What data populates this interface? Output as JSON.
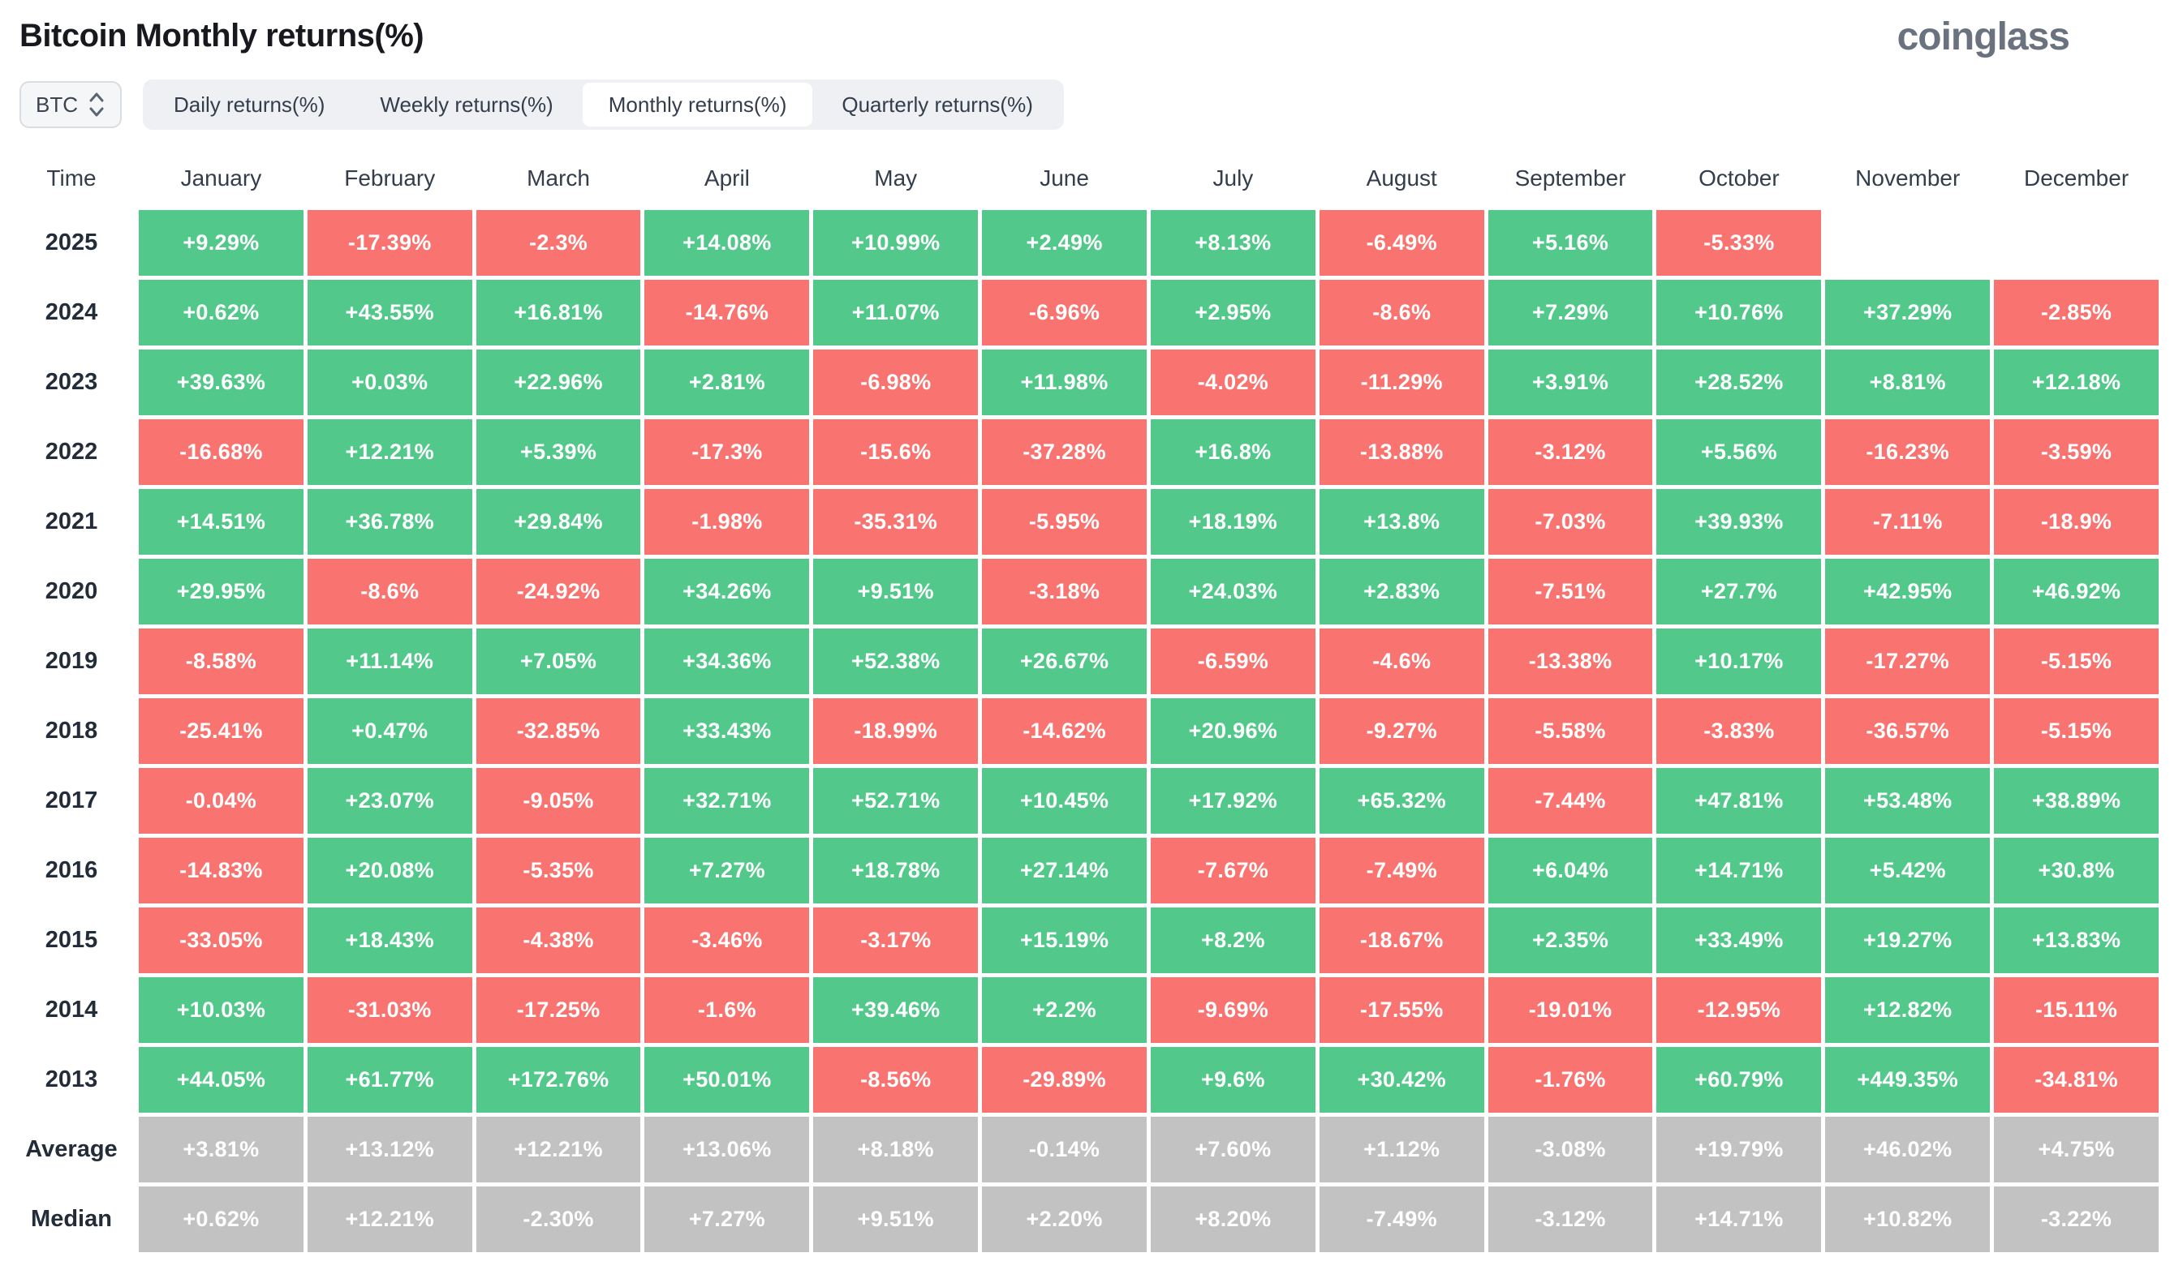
{
  "header": {
    "title": "Bitcoin Monthly returns(%)",
    "logo": "coinglass"
  },
  "controls": {
    "coin_selector": {
      "value": "BTC",
      "icon": "updown-chevron"
    },
    "tabs": [
      {
        "label": "Daily returns(%)",
        "active": false
      },
      {
        "label": "Weekly returns(%)",
        "active": false
      },
      {
        "label": "Monthly returns(%)",
        "active": true
      },
      {
        "label": "Quarterly returns(%)",
        "active": false
      }
    ]
  },
  "chart_data": {
    "type": "heatmap",
    "title": "Bitcoin Monthly returns(%)",
    "columns": [
      "Time",
      "January",
      "February",
      "March",
      "April",
      "May",
      "June",
      "July",
      "August",
      "September",
      "October",
      "November",
      "December"
    ],
    "colors": {
      "positive": "#52c98b",
      "negative": "#f97470",
      "neutral": "#c2c2c2"
    },
    "rows": [
      {
        "label": "2025",
        "type": "year",
        "values": [
          "+9.29%",
          "-17.39%",
          "-2.3%",
          "+14.08%",
          "+10.99%",
          "+2.49%",
          "+8.13%",
          "-6.49%",
          "+5.16%",
          "-5.33%",
          "",
          ""
        ]
      },
      {
        "label": "2024",
        "type": "year",
        "values": [
          "+0.62%",
          "+43.55%",
          "+16.81%",
          "-14.76%",
          "+11.07%",
          "-6.96%",
          "+2.95%",
          "-8.6%",
          "+7.29%",
          "+10.76%",
          "+37.29%",
          "-2.85%"
        ]
      },
      {
        "label": "2023",
        "type": "year",
        "values": [
          "+39.63%",
          "+0.03%",
          "+22.96%",
          "+2.81%",
          "-6.98%",
          "+11.98%",
          "-4.02%",
          "-11.29%",
          "+3.91%",
          "+28.52%",
          "+8.81%",
          "+12.18%"
        ]
      },
      {
        "label": "2022",
        "type": "year",
        "values": [
          "-16.68%",
          "+12.21%",
          "+5.39%",
          "-17.3%",
          "-15.6%",
          "-37.28%",
          "+16.8%",
          "-13.88%",
          "-3.12%",
          "+5.56%",
          "-16.23%",
          "-3.59%"
        ]
      },
      {
        "label": "2021",
        "type": "year",
        "values": [
          "+14.51%",
          "+36.78%",
          "+29.84%",
          "-1.98%",
          "-35.31%",
          "-5.95%",
          "+18.19%",
          "+13.8%",
          "-7.03%",
          "+39.93%",
          "-7.11%",
          "-18.9%"
        ]
      },
      {
        "label": "2020",
        "type": "year",
        "values": [
          "+29.95%",
          "-8.6%",
          "-24.92%",
          "+34.26%",
          "+9.51%",
          "-3.18%",
          "+24.03%",
          "+2.83%",
          "-7.51%",
          "+27.7%",
          "+42.95%",
          "+46.92%"
        ]
      },
      {
        "label": "2019",
        "type": "year",
        "values": [
          "-8.58%",
          "+11.14%",
          "+7.05%",
          "+34.36%",
          "+52.38%",
          "+26.67%",
          "-6.59%",
          "-4.6%",
          "-13.38%",
          "+10.17%",
          "-17.27%",
          "-5.15%"
        ]
      },
      {
        "label": "2018",
        "type": "year",
        "values": [
          "-25.41%",
          "+0.47%",
          "-32.85%",
          "+33.43%",
          "-18.99%",
          "-14.62%",
          "+20.96%",
          "-9.27%",
          "-5.58%",
          "-3.83%",
          "-36.57%",
          "-5.15%"
        ]
      },
      {
        "label": "2017",
        "type": "year",
        "values": [
          "-0.04%",
          "+23.07%",
          "-9.05%",
          "+32.71%",
          "+52.71%",
          "+10.45%",
          "+17.92%",
          "+65.32%",
          "-7.44%",
          "+47.81%",
          "+53.48%",
          "+38.89%"
        ]
      },
      {
        "label": "2016",
        "type": "year",
        "values": [
          "-14.83%",
          "+20.08%",
          "-5.35%",
          "+7.27%",
          "+18.78%",
          "+27.14%",
          "-7.67%",
          "-7.49%",
          "+6.04%",
          "+14.71%",
          "+5.42%",
          "+30.8%"
        ]
      },
      {
        "label": "2015",
        "type": "year",
        "values": [
          "-33.05%",
          "+18.43%",
          "-4.38%",
          "-3.46%",
          "-3.17%",
          "+15.19%",
          "+8.2%",
          "-18.67%",
          "+2.35%",
          "+33.49%",
          "+19.27%",
          "+13.83%"
        ]
      },
      {
        "label": "2014",
        "type": "year",
        "values": [
          "+10.03%",
          "-31.03%",
          "-17.25%",
          "-1.6%",
          "+39.46%",
          "+2.2%",
          "-9.69%",
          "-17.55%",
          "-19.01%",
          "-12.95%",
          "+12.82%",
          "-15.11%"
        ]
      },
      {
        "label": "2013",
        "type": "year",
        "values": [
          "+44.05%",
          "+61.77%",
          "+172.76%",
          "+50.01%",
          "-8.56%",
          "-29.89%",
          "+9.6%",
          "+30.42%",
          "-1.76%",
          "+60.79%",
          "+449.35%",
          "-34.81%"
        ]
      },
      {
        "label": "Average",
        "type": "summary",
        "values": [
          "+3.81%",
          "+13.12%",
          "+12.21%",
          "+13.06%",
          "+8.18%",
          "-0.14%",
          "+7.60%",
          "+1.12%",
          "-3.08%",
          "+19.79%",
          "+46.02%",
          "+4.75%"
        ]
      },
      {
        "label": "Median",
        "type": "summary",
        "values": [
          "+0.62%",
          "+12.21%",
          "-2.30%",
          "+7.27%",
          "+9.51%",
          "+2.20%",
          "+8.20%",
          "-7.49%",
          "-3.12%",
          "+14.71%",
          "+10.82%",
          "-3.22%"
        ]
      }
    ]
  }
}
